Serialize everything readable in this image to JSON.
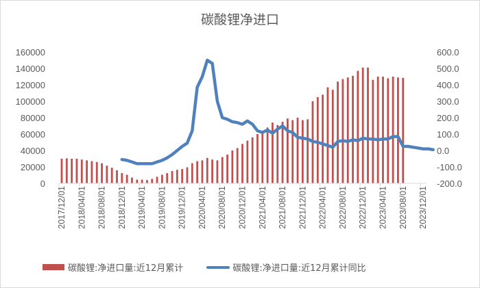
{
  "chart_data": {
    "type": "bar+line",
    "title": "碳酸锂净进口",
    "xlabel": "",
    "ylabel_left": "",
    "ylabel_right": "",
    "ylim_left": [
      0,
      160000
    ],
    "ylim_right": [
      -200,
      600
    ],
    "yticks_left": [
      "160000",
      "140000",
      "120000",
      "100000",
      "80000",
      "60000",
      "40000",
      "20000",
      "0"
    ],
    "yticks_right": [
      "600.0",
      "500.0",
      "400.0",
      "300.0",
      "200.0",
      "100.0",
      "0.0",
      "-100.0",
      "-200.0"
    ],
    "xtick_labels": [
      "2017/12/01",
      "2018/04/01",
      "2018/08/01",
      "2018/12/01",
      "2019/04/01",
      "2019/08/01",
      "2019/12/01",
      "2020/04/01",
      "2020/08/01",
      "2020/12/01",
      "2021/04/01",
      "2021/08/01",
      "2021/12/01",
      "2022/04/01",
      "2022/08/01",
      "2022/12/01",
      "2023/04/01",
      "2023/08/01",
      "2023/12/01"
    ],
    "x_start": "2017/12",
    "x_end": "2023/12",
    "frequency": "monthly",
    "legend_position": "bottom",
    "grid": false,
    "series": [
      {
        "name": "碳酸锂:净进口量:近12月累计",
        "type": "bar",
        "axis": "left",
        "color": "#c0504d",
        "values": [
          30000,
          30500,
          30000,
          30000,
          29000,
          28000,
          27000,
          26000,
          24500,
          21500,
          19000,
          16000,
          12500,
          10500,
          7000,
          4500,
          4500,
          4000,
          5500,
          8000,
          10500,
          12500,
          15000,
          16500,
          17500,
          19500,
          24500,
          27000,
          28000,
          31000,
          29000,
          28000,
          32000,
          35000,
          40000,
          43000,
          48000,
          52000,
          56000,
          60000,
          64000,
          68000,
          74000,
          71000,
          75000,
          79000,
          77000,
          80000,
          77000,
          78000,
          100000,
          105000,
          108000,
          117000,
          114000,
          124000,
          127000,
          129000,
          131000,
          137000,
          141000,
          141000,
          126000,
          130000,
          130000,
          128000,
          130000,
          129000,
          128500
        ]
      },
      {
        "name": "碳酸锂:净进口量:近12月累计同比",
        "type": "line",
        "axis": "right",
        "color": "#4f81bd",
        "start_index": 12,
        "values": [
          -55,
          -60,
          -70,
          -80,
          -80,
          -80,
          -80,
          -70,
          -60,
          -45,
          -25,
          0,
          25,
          45,
          120,
          385,
          450,
          550,
          530,
          300,
          200,
          190,
          175,
          170,
          160,
          180,
          160,
          120,
          110,
          125,
          105,
          130,
          150,
          120,
          110,
          80,
          75,
          70,
          55,
          50,
          40,
          30,
          20,
          55,
          60,
          55,
          65,
          60,
          75,
          70,
          70,
          65,
          70,
          70,
          85,
          85,
          25,
          25,
          20,
          15,
          10,
          10,
          5
        ]
      }
    ]
  }
}
